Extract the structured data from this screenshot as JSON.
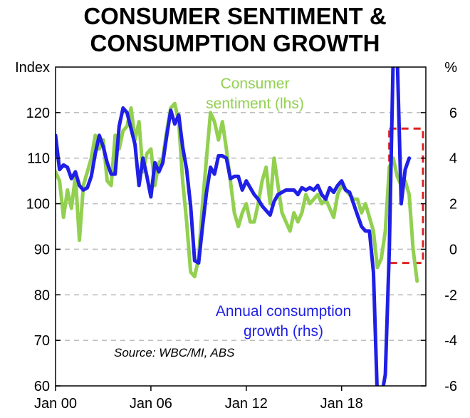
{
  "chart_data": {
    "type": "line",
    "title_lines": [
      "CONSUMER SENTIMENT &",
      "CONSUMPTION GROWTH"
    ],
    "left_axis": {
      "unit": "Index",
      "ylim": [
        60,
        130
      ],
      "ticks": [
        60,
        70,
        80,
        90,
        100,
        110,
        120
      ]
    },
    "right_axis": {
      "unit": "%",
      "ylim": [
        -6,
        8
      ],
      "ticks": [
        -6,
        -4,
        -2,
        0,
        2,
        4,
        6
      ]
    },
    "x_axis": {
      "xlim": [
        2000.0,
        2023.3
      ],
      "ticks": [
        2000,
        2006,
        2012,
        2018
      ],
      "tick_labels": [
        "Jan 00",
        "Jan 06",
        "Jan 12",
        "Jan 18"
      ]
    },
    "grid": "horizontal dashed",
    "source": "Source: WBC/MI, ABS",
    "colors": {
      "sentiment": "#92D050",
      "consumption": "#1F1FE6",
      "highlight_box": "#E02020"
    },
    "highlight_box": {
      "x": [
        2021.0,
        2023.7
      ],
      "y_rhs": [
        -0.6,
        5.3
      ]
    },
    "series": [
      {
        "name": "Consumer sentiment (lhs)",
        "axis": "left",
        "label_lines": [
          "Consumer",
          "sentiment (lhs)"
        ],
        "points": [
          [
            2000.0,
            107
          ],
          [
            2000.25,
            105
          ],
          [
            2000.5,
            97
          ],
          [
            2000.75,
            103
          ],
          [
            2001.0,
            99
          ],
          [
            2001.25,
            106
          ],
          [
            2001.5,
            92
          ],
          [
            2001.75,
            104
          ],
          [
            2002.0,
            107
          ],
          [
            2002.25,
            110
          ],
          [
            2002.5,
            115
          ],
          [
            2002.75,
            112
          ],
          [
            2003.0,
            114
          ],
          [
            2003.25,
            105
          ],
          [
            2003.5,
            104
          ],
          [
            2003.75,
            115
          ],
          [
            2004.0,
            112
          ],
          [
            2004.25,
            116
          ],
          [
            2004.5,
            117
          ],
          [
            2004.75,
            121
          ],
          [
            2005.0,
            114
          ],
          [
            2005.25,
            118
          ],
          [
            2005.5,
            107
          ],
          [
            2005.75,
            111
          ],
          [
            2006.0,
            112
          ],
          [
            2006.25,
            104
          ],
          [
            2006.5,
            109
          ],
          [
            2006.75,
            110
          ],
          [
            2007.0,
            116
          ],
          [
            2007.25,
            121
          ],
          [
            2007.5,
            122
          ],
          [
            2007.75,
            118
          ],
          [
            2008.0,
            105
          ],
          [
            2008.25,
            96
          ],
          [
            2008.5,
            85
          ],
          [
            2008.75,
            84
          ],
          [
            2009.0,
            88
          ],
          [
            2009.25,
            100
          ],
          [
            2009.5,
            110
          ],
          [
            2009.75,
            120
          ],
          [
            2010.0,
            118
          ],
          [
            2010.25,
            114
          ],
          [
            2010.5,
            118
          ],
          [
            2010.75,
            112
          ],
          [
            2011.0,
            105
          ],
          [
            2011.25,
            98
          ],
          [
            2011.5,
            95
          ],
          [
            2011.75,
            98
          ],
          [
            2012.0,
            100
          ],
          [
            2012.25,
            96
          ],
          [
            2012.5,
            96
          ],
          [
            2012.75,
            100
          ],
          [
            2013.0,
            105
          ],
          [
            2013.25,
            108
          ],
          [
            2013.5,
            100
          ],
          [
            2013.75,
            110
          ],
          [
            2014.0,
            104
          ],
          [
            2014.25,
            98
          ],
          [
            2014.5,
            96
          ],
          [
            2014.75,
            94
          ],
          [
            2015.0,
            98
          ],
          [
            2015.25,
            96
          ],
          [
            2015.5,
            98
          ],
          [
            2015.75,
            102
          ],
          [
            2016.0,
            100
          ],
          [
            2016.25,
            101
          ],
          [
            2016.5,
            102
          ],
          [
            2016.75,
            100
          ],
          [
            2017.0,
            101
          ],
          [
            2017.25,
            99
          ],
          [
            2017.5,
            97
          ],
          [
            2017.75,
            102
          ],
          [
            2018.0,
            104
          ],
          [
            2018.25,
            103
          ],
          [
            2018.5,
            102
          ],
          [
            2018.75,
            101
          ],
          [
            2019.0,
            101
          ],
          [
            2019.25,
            98
          ],
          [
            2019.5,
            100
          ],
          [
            2019.75,
            97
          ],
          [
            2020.0,
            94
          ],
          [
            2020.25,
            86
          ],
          [
            2020.5,
            88
          ],
          [
            2020.75,
            94
          ],
          [
            2021.0,
            108
          ],
          [
            2021.25,
            110
          ],
          [
            2021.5,
            106
          ],
          [
            2021.75,
            104
          ],
          [
            2022.0,
            105
          ],
          [
            2022.25,
            102
          ],
          [
            2022.5,
            90
          ],
          [
            2022.75,
            83
          ]
        ]
      },
      {
        "name": "Annual consumption growth (rhs)",
        "axis": "right",
        "label_lines": [
          "Annual consumption",
          "growth (rhs)"
        ],
        "points": [
          [
            2000.0,
            5.0
          ],
          [
            2000.25,
            3.5
          ],
          [
            2000.5,
            3.7
          ],
          [
            2000.75,
            3.6
          ],
          [
            2001.0,
            3.1
          ],
          [
            2001.25,
            3.4
          ],
          [
            2001.5,
            2.8
          ],
          [
            2001.75,
            2.6
          ],
          [
            2002.0,
            2.7
          ],
          [
            2002.25,
            3.2
          ],
          [
            2002.5,
            4.2
          ],
          [
            2002.75,
            5.0
          ],
          [
            2003.0,
            4.5
          ],
          [
            2003.25,
            3.8
          ],
          [
            2003.5,
            3.3
          ],
          [
            2003.75,
            3.3
          ],
          [
            2004.0,
            5.4
          ],
          [
            2004.25,
            6.2
          ],
          [
            2004.5,
            6.0
          ],
          [
            2004.75,
            5.3
          ],
          [
            2005.0,
            4.6
          ],
          [
            2005.25,
            2.8
          ],
          [
            2005.5,
            4.0
          ],
          [
            2005.75,
            3.2
          ],
          [
            2006.0,
            2.3
          ],
          [
            2006.25,
            3.8
          ],
          [
            2006.5,
            3.4
          ],
          [
            2006.75,
            3.8
          ],
          [
            2007.0,
            5.0
          ],
          [
            2007.25,
            6.1
          ],
          [
            2007.5,
            5.5
          ],
          [
            2007.75,
            5.9
          ],
          [
            2008.0,
            4.5
          ],
          [
            2008.25,
            3.5
          ],
          [
            2008.5,
            1.9
          ],
          [
            2008.75,
            -0.5
          ],
          [
            2009.0,
            -0.6
          ],
          [
            2009.25,
            1.0
          ],
          [
            2009.5,
            2.5
          ],
          [
            2009.75,
            3.6
          ],
          [
            2010.0,
            3.3
          ],
          [
            2010.25,
            4.1
          ],
          [
            2010.5,
            4.1
          ],
          [
            2010.75,
            4.0
          ],
          [
            2011.0,
            3.1
          ],
          [
            2011.25,
            3.2
          ],
          [
            2011.5,
            3.2
          ],
          [
            2011.75,
            2.6
          ],
          [
            2012.0,
            3.0
          ],
          [
            2012.25,
            2.7
          ],
          [
            2012.5,
            2.4
          ],
          [
            2012.75,
            2.2
          ],
          [
            2013.0,
            1.9
          ],
          [
            2013.25,
            1.7
          ],
          [
            2013.5,
            1.5
          ],
          [
            2013.75,
            2.1
          ],
          [
            2014.0,
            2.4
          ],
          [
            2014.25,
            2.5
          ],
          [
            2014.5,
            2.6
          ],
          [
            2014.75,
            2.6
          ],
          [
            2015.0,
            2.6
          ],
          [
            2015.25,
            2.4
          ],
          [
            2015.5,
            2.7
          ],
          [
            2015.75,
            2.6
          ],
          [
            2016.0,
            2.7
          ],
          [
            2016.25,
            2.6
          ],
          [
            2016.5,
            2.8
          ],
          [
            2016.75,
            2.4
          ],
          [
            2017.0,
            2.2
          ],
          [
            2017.25,
            2.7
          ],
          [
            2017.5,
            2.5
          ],
          [
            2017.75,
            2.8
          ],
          [
            2018.0,
            3.0
          ],
          [
            2018.25,
            2.6
          ],
          [
            2018.5,
            2.5
          ],
          [
            2018.75,
            2.0
          ],
          [
            2019.0,
            1.5
          ],
          [
            2019.25,
            1.0
          ],
          [
            2019.5,
            0.8
          ],
          [
            2019.75,
            0.8
          ],
          [
            2020.0,
            -1.0
          ],
          [
            2020.25,
            -6.5
          ],
          [
            2020.5,
            -6.5
          ],
          [
            2020.75,
            -5.5
          ],
          [
            2021.0,
            0.0
          ],
          [
            2021.25,
            8.5
          ],
          [
            2021.5,
            8.5
          ],
          [
            2021.75,
            2.0
          ],
          [
            2022.0,
            3.5
          ],
          [
            2022.25,
            4.0
          ]
        ]
      }
    ]
  }
}
